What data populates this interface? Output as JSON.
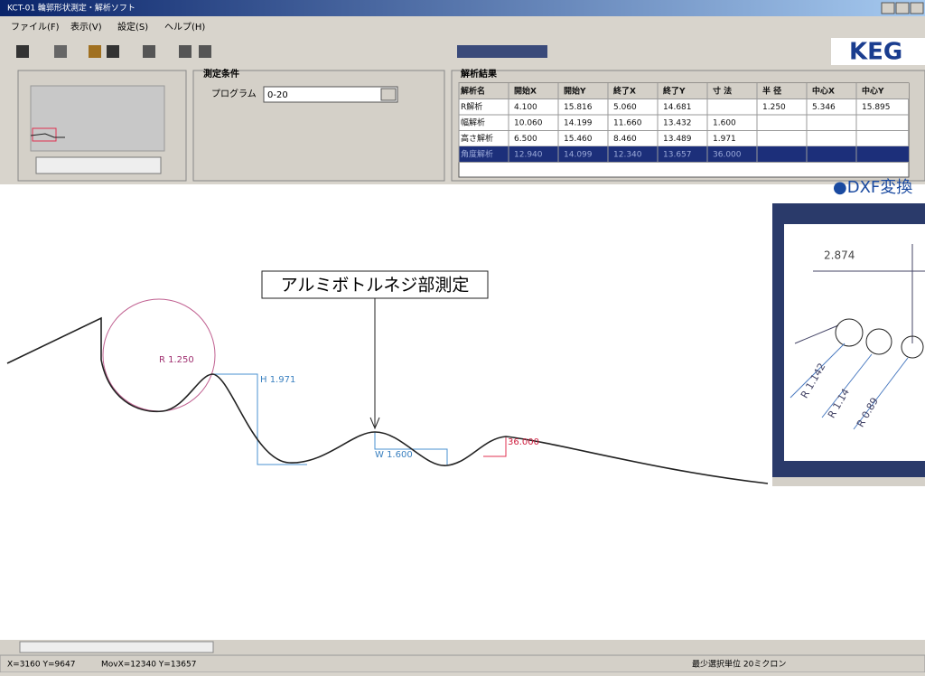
{
  "window": {
    "title": "KCT-01 輪郭形状測定・解析ソフト",
    "menu": [
      "ファイル(F)",
      "表示(V)",
      "設定(S)",
      "ヘルプ(H)"
    ],
    "logo": "KEG"
  },
  "conditions": {
    "title": "測定条件",
    "program_label": "プログラム",
    "program_value": "0-20"
  },
  "results": {
    "title": "解析結果",
    "header": [
      "解析名",
      "開始X",
      "開始Y",
      "終了X",
      "終了Y",
      "寸 法",
      "半 径",
      "中心X",
      "中心Y"
    ],
    "rows": [
      [
        "R解析",
        "4.100",
        "15.816",
        "5.060",
        "14.681",
        null,
        "1.250",
        "5.346",
        "15.895"
      ],
      [
        "幅解析",
        "10.060",
        "14.199",
        "11.660",
        "13.432",
        "1.600",
        null,
        null,
        null
      ],
      [
        "高さ解析",
        "6.500",
        "15.460",
        "8.460",
        "13.489",
        "1.971",
        null,
        null,
        null
      ],
      [
        "角度解析",
        "12.940",
        "14.099",
        "12.340",
        "13.657",
        "36.000",
        null,
        null,
        null
      ]
    ]
  },
  "canvas": {
    "annotation": "アルミボトルネジ部測定",
    "radius_label": "R 1.250",
    "height_label": "H 1.971",
    "width_label": "W 1.600",
    "angle_label": "36.000"
  },
  "dxf": {
    "title": "●DXF変換",
    "dimension": "2.874",
    "radii": [
      "R 1.142",
      "R 1.14",
      "R 0.89"
    ]
  },
  "status": {
    "cursor": "X=3160 Y=9647",
    "move": "MovX=12340 Y=13657",
    "unit": "最少選択単位 20ミクロン"
  }
}
